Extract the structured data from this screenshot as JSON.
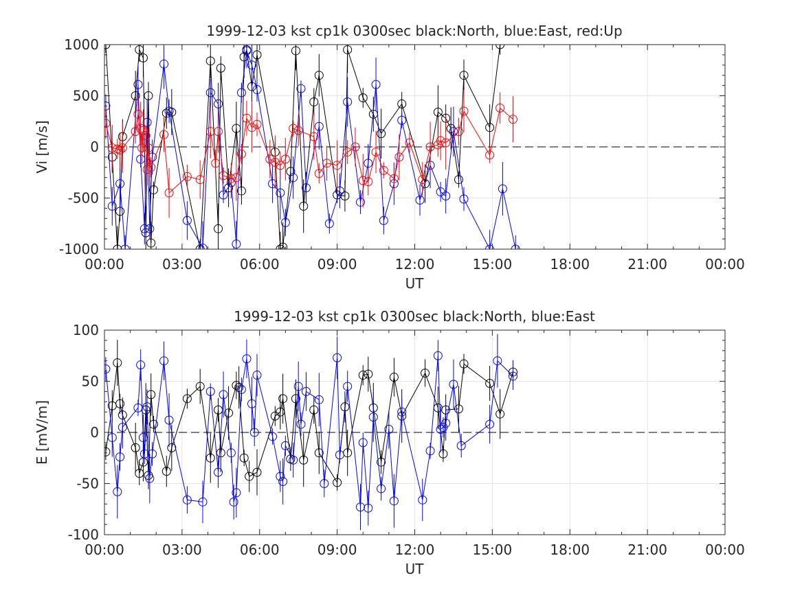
{
  "chart_data": [
    {
      "type": "line",
      "title": "1999-12-03 kst cp1k 0300sec black:North, blue:East, red:Up",
      "xlabel": "UT",
      "ylabel": "Vi [m/s]",
      "xlim": [
        0,
        24
      ],
      "ylim": [
        -1000,
        1000
      ],
      "xticks": [
        0,
        3,
        6,
        9,
        12,
        15,
        18,
        21,
        24
      ],
      "xticklabels": [
        "00:00",
        "03:00",
        "06:00",
        "09:00",
        "12:00",
        "15:00",
        "18:00",
        "21:00",
        "00:00"
      ],
      "yticks": [
        -1000,
        -500,
        0,
        500,
        1000
      ],
      "yticklabels": [
        "-1000",
        "-500",
        "0",
        "500",
        "1000"
      ],
      "grid": true,
      "zero_line": "dashed",
      "series": [
        {
          "color": "#000000",
          "x": [
            0.05,
            0.3,
            0.5,
            0.6,
            0.7,
            1.2,
            1.35,
            1.5,
            1.6,
            1.7,
            1.8,
            1.9,
            2.4,
            2.6,
            3.7,
            4.1,
            4.4,
            4.5,
            4.8,
            5.1,
            5.3,
            5.4,
            5.5,
            5.7,
            5.9,
            6.6,
            6.8,
            6.9,
            7.2,
            7.4,
            7.7,
            8.1,
            8.3,
            9.0,
            9.3,
            9.4,
            10.0,
            10.4,
            10.7,
            11.5,
            12.4,
            12.9,
            13.2,
            13.4,
            13.7,
            13.9,
            14.9,
            15.3
          ],
          "y": [
            1000,
            -100,
            -1000,
            -630,
            100,
            500,
            950,
            870,
            -840,
            500,
            -940,
            -420,
            330,
            340,
            -1000,
            840,
            -800,
            770,
            -400,
            180,
            -430,
            880,
            950,
            590,
            900,
            -50,
            -1000,
            -980,
            -240,
            940,
            -580,
            440,
            700,
            -470,
            -480,
            950,
            480,
            320,
            130,
            420,
            -360,
            340,
            280,
            180,
            -320,
            700,
            190,
            1000
          ]
        },
        {
          "color": "#0000ff",
          "x": [
            0.05,
            0.3,
            0.6,
            0.8,
            1.3,
            1.4,
            1.55,
            1.65,
            1.75,
            1.85,
            2.3,
            2.5,
            3.2,
            3.8,
            4.1,
            4.4,
            4.6,
            4.9,
            5.1,
            5.3,
            5.5,
            5.7,
            5.9,
            6.5,
            6.8,
            7.0,
            7.3,
            7.6,
            7.8,
            8.3,
            8.7,
            9.1,
            9.4,
            9.9,
            10.2,
            10.5,
            10.8,
            11.2,
            11.5,
            12.2,
            12.6,
            13.0,
            13.2,
            13.5,
            13.9,
            14.9,
            15.4,
            15.9
          ],
          "y": [
            400,
            -580,
            -360,
            -1000,
            610,
            -120,
            -800,
            240,
            -800,
            -100,
            810,
            350,
            -720,
            -990,
            530,
            420,
            -470,
            -350,
            -950,
            530,
            940,
            800,
            560,
            -360,
            -450,
            -740,
            -300,
            570,
            -400,
            200,
            -750,
            -430,
            440,
            -540,
            -160,
            610,
            -720,
            -360,
            260,
            -520,
            -180,
            -440,
            -480,
            150,
            -510,
            -1000,
            -410,
            -1000
          ]
        },
        {
          "color": "#ff0000",
          "x": [
            0.05,
            0.3,
            0.5,
            0.6,
            0.7,
            1.2,
            1.3,
            1.4,
            1.45,
            1.5,
            1.6,
            1.65,
            1.7,
            1.8,
            2.3,
            2.5,
            3.2,
            3.7,
            4.1,
            4.3,
            4.4,
            4.6,
            4.9,
            5.1,
            5.3,
            5.5,
            5.7,
            5.9,
            6.4,
            6.6,
            6.8,
            7.0,
            7.3,
            7.5,
            8.1,
            8.3,
            8.6,
            9.0,
            9.4,
            9.7,
            10.0,
            10.2,
            10.5,
            10.8,
            11.2,
            11.4,
            11.8,
            12.3,
            12.6,
            12.9,
            13.0,
            13.2,
            13.7,
            13.9,
            14.9,
            15.3,
            15.8
          ],
          "y": [
            230,
            -10,
            -20,
            -30,
            -10,
            150,
            320,
            180,
            -10,
            160,
            110,
            -220,
            -10,
            -200,
            120,
            -450,
            -290,
            -320,
            150,
            -160,
            150,
            -280,
            -310,
            -300,
            -70,
            280,
            190,
            220,
            -120,
            -150,
            -180,
            -120,
            180,
            160,
            100,
            -260,
            -160,
            -180,
            -50,
            0,
            -330,
            -340,
            -50,
            -230,
            -310,
            -100,
            40,
            -320,
            0,
            20,
            60,
            40,
            150,
            350,
            -80,
            380,
            270
          ]
        }
      ]
    },
    {
      "type": "line",
      "title": "1999-12-03 kst cp1k 0300sec black:North, blue:East",
      "xlabel": "UT",
      "ylabel": "E [mV/m]",
      "xlim": [
        0,
        24
      ],
      "ylim": [
        -100,
        100
      ],
      "xticks": [
        0,
        3,
        6,
        9,
        12,
        15,
        18,
        21,
        24
      ],
      "xticklabels": [
        "00:00",
        "03:00",
        "06:00",
        "09:00",
        "12:00",
        "15:00",
        "18:00",
        "21:00",
        "00:00"
      ],
      "yticks": [
        -100,
        -50,
        0,
        50,
        100
      ],
      "yticklabels": [
        "-100",
        "-50",
        "0",
        "50",
        "100"
      ],
      "grid": true,
      "zero_line": "dashed",
      "series": [
        {
          "color": "#000000",
          "x": [
            0.05,
            0.3,
            0.5,
            0.6,
            0.7,
            1.2,
            1.35,
            1.5,
            1.6,
            1.7,
            1.8,
            1.9,
            2.4,
            2.6,
            3.2,
            3.7,
            4.1,
            4.4,
            4.5,
            4.8,
            5.1,
            5.2,
            5.4,
            5.6,
            5.9,
            6.6,
            6.8,
            6.9,
            7.2,
            7.4,
            7.7,
            8.1,
            8.3,
            9.0,
            9.3,
            9.4,
            10.0,
            10.2,
            10.4,
            10.7,
            11.2,
            11.5,
            12.4,
            12.9,
            13.1,
            13.2,
            13.7,
            13.9,
            14.9,
            15.3,
            15.8
          ],
          "y": [
            -19,
            26,
            68,
            28,
            17,
            -15,
            -40,
            -29,
            22,
            -42,
            37,
            8,
            -38,
            -15,
            33,
            45,
            -25,
            22,
            -20,
            19,
            46,
            44,
            -25,
            -43,
            -39,
            16,
            20,
            33,
            -26,
            33,
            -27,
            22,
            -20,
            -49,
            25,
            -20,
            56,
            57,
            24,
            -29,
            54,
            16,
            58,
            24,
            -21,
            22,
            23,
            67,
            48,
            18,
            59
          ]
        },
        {
          "color": "#0000ff",
          "x": [
            0.05,
            0.3,
            0.5,
            0.6,
            0.7,
            1.3,
            1.4,
            1.5,
            1.55,
            1.65,
            1.75,
            1.85,
            2.3,
            2.5,
            3.2,
            3.8,
            4.1,
            4.4,
            4.6,
            4.9,
            5.0,
            5.1,
            5.3,
            5.5,
            5.7,
            5.8,
            5.9,
            6.5,
            6.8,
            6.9,
            7.0,
            7.3,
            7.5,
            7.6,
            7.8,
            8.3,
            8.5,
            9.0,
            9.1,
            9.4,
            9.9,
            10.0,
            10.2,
            10.4,
            10.7,
            11.0,
            11.2,
            11.5,
            12.3,
            12.6,
            12.9,
            13.0,
            13.1,
            13.2,
            13.5,
            13.8,
            14.9,
            15.2,
            15.8
          ],
          "y": [
            62,
            -5,
            -58,
            -24,
            5,
            24,
            66,
            -5,
            -21,
            25,
            -45,
            -21,
            70,
            12,
            -66,
            -68,
            40,
            -39,
            37,
            -20,
            -68,
            -59,
            42,
            72,
            28,
            0,
            56,
            -4,
            -43,
            -48,
            -13,
            -27,
            45,
            8,
            40,
            32,
            -50,
            73,
            -22,
            45,
            -73,
            -10,
            -74,
            15,
            -55,
            3,
            -67,
            20,
            -66,
            -18,
            75,
            3,
            5,
            9,
            47,
            -13,
            8,
            70,
            55
          ]
        }
      ]
    }
  ]
}
